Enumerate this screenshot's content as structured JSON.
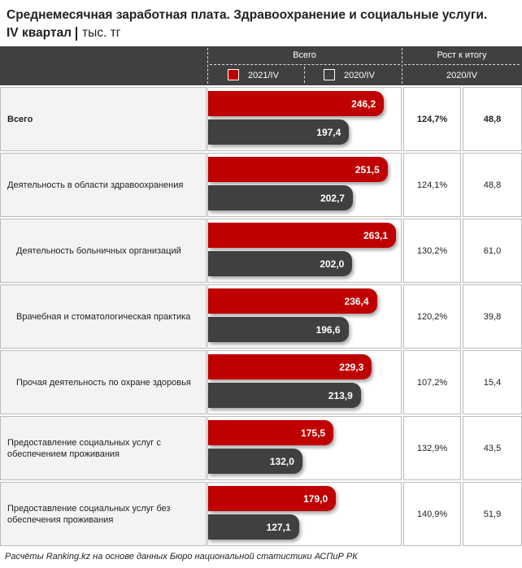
{
  "chart_data": {
    "type": "bar",
    "orientation": "horizontal",
    "title": "Среднемесячная заработная плата. Здравоохранение и социальные услуги.",
    "subtitle": "IV квартал",
    "unit": "тыс. тг",
    "group_header": "Всего",
    "categories": [
      "Всего",
      "Деятельность в области здравоохранения",
      "Деятельность больничных организаций",
      "Врачебная и стоматологическая практика",
      "Прочая деятельность по охране здоровья",
      "Предоставление социальных услуг с обеспечением проживания",
      "Предоставление социальных услуг без обеспечения проживания"
    ],
    "series": [
      {
        "name": "2021/IV",
        "color": "#c00000",
        "values": [
          246.2,
          251.5,
          263.1,
          236.4,
          229.3,
          175.5,
          179.0
        ],
        "value_labels": [
          "246,2",
          "251,5",
          "263,1",
          "236,4",
          "229,3",
          "175,5",
          "179,0"
        ]
      },
      {
        "name": "2020/IV",
        "color": "#404040",
        "values": [
          197.4,
          202.7,
          202.0,
          196.6,
          213.9,
          132.0,
          127.1
        ],
        "value_labels": [
          "197,4",
          "202,7",
          "202,0",
          "196,6",
          "213,9",
          "132,0",
          "127,1"
        ]
      }
    ],
    "growth": {
      "header": "Рост к итогу",
      "subheader": "2020/IV",
      "percent": {
        "values": [
          124.7,
          124.1,
          130.2,
          120.2,
          107.2,
          132.9,
          140.9
        ],
        "value_labels": [
          "124,7%",
          "124,1%",
          "130,2%",
          "120,2%",
          "107,2%",
          "132,9%",
          "140,9%"
        ]
      },
      "absolute": {
        "values": [
          48.8,
          48.8,
          61.0,
          39.8,
          15.4,
          43.5,
          51.9
        ],
        "value_labels": [
          "48,8",
          "48,8",
          "61,0",
          "39,8",
          "15,4",
          "43,5",
          "51,9"
        ]
      }
    },
    "source": "Расчёты Ranking.kz на основе данных Бюро национальной статистики АСПиР РК"
  }
}
